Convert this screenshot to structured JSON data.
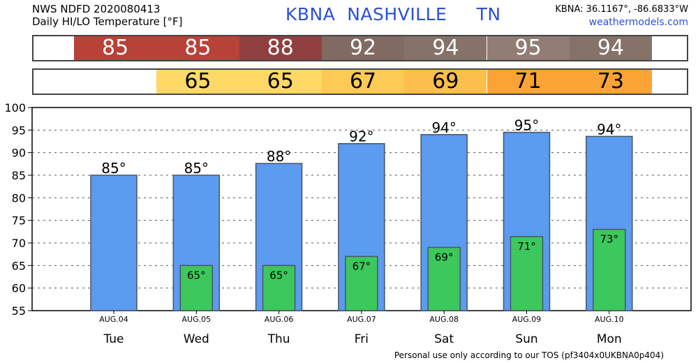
{
  "header": {
    "line1": "NWS NDFD 2020080413",
    "line2": "Daily HI/LO Temperature [°F]",
    "title": "KBNA  NASHVILLE     TN",
    "coords": "KBNA: 36.1167°, -86.6833°W",
    "site": "weathermodels.com"
  },
  "hi_strip": {
    "values": [
      "85",
      "85",
      "88",
      "92",
      "94",
      "95",
      "94"
    ],
    "colors": [
      "#b84138",
      "#b84138",
      "#8f3f3f",
      "#806a62",
      "#857268",
      "#917d74",
      "#857268"
    ],
    "text_color": "#ffffff"
  },
  "lo_strip": {
    "values": [
      "65",
      "65",
      "67",
      "69",
      "71",
      "73"
    ],
    "colors": [
      "#fed966",
      "#fed966",
      "#fdca55",
      "#fdbe4c",
      "#fca336",
      "#fca336"
    ],
    "text_color": "#000000"
  },
  "footer": "Personal use only according to our TOS (pf3404x0UKBNA0p404)",
  "chart_data": {
    "type": "bar",
    "categories": [
      "Tue",
      "Wed",
      "Thu",
      "Fri",
      "Sat",
      "Sun",
      "Mon"
    ],
    "dates": [
      "AUG.04",
      "AUG.05",
      "AUG.06",
      "AUG.07",
      "AUG.08",
      "AUG.09",
      "AUG.10"
    ],
    "series": [
      {
        "values": [
          85,
          85,
          87.6,
          92,
          94,
          94.5,
          93.6
        ],
        "labels": [
          "85°",
          "85°",
          "88°",
          "92°",
          "94°",
          "95°",
          "94°"
        ],
        "color": "#5b9bf0"
      },
      {
        "values": [
          null,
          65,
          65,
          67,
          69,
          71.4,
          73
        ],
        "labels": [
          null,
          "65°",
          "65°",
          "67°",
          "69°",
          "71°",
          "73°"
        ],
        "color": "#3cc85c"
      }
    ],
    "ylim": [
      55,
      100
    ],
    "yticks": [
      55,
      60,
      65,
      70,
      75,
      80,
      85,
      90,
      95,
      100
    ],
    "grid": true
  }
}
